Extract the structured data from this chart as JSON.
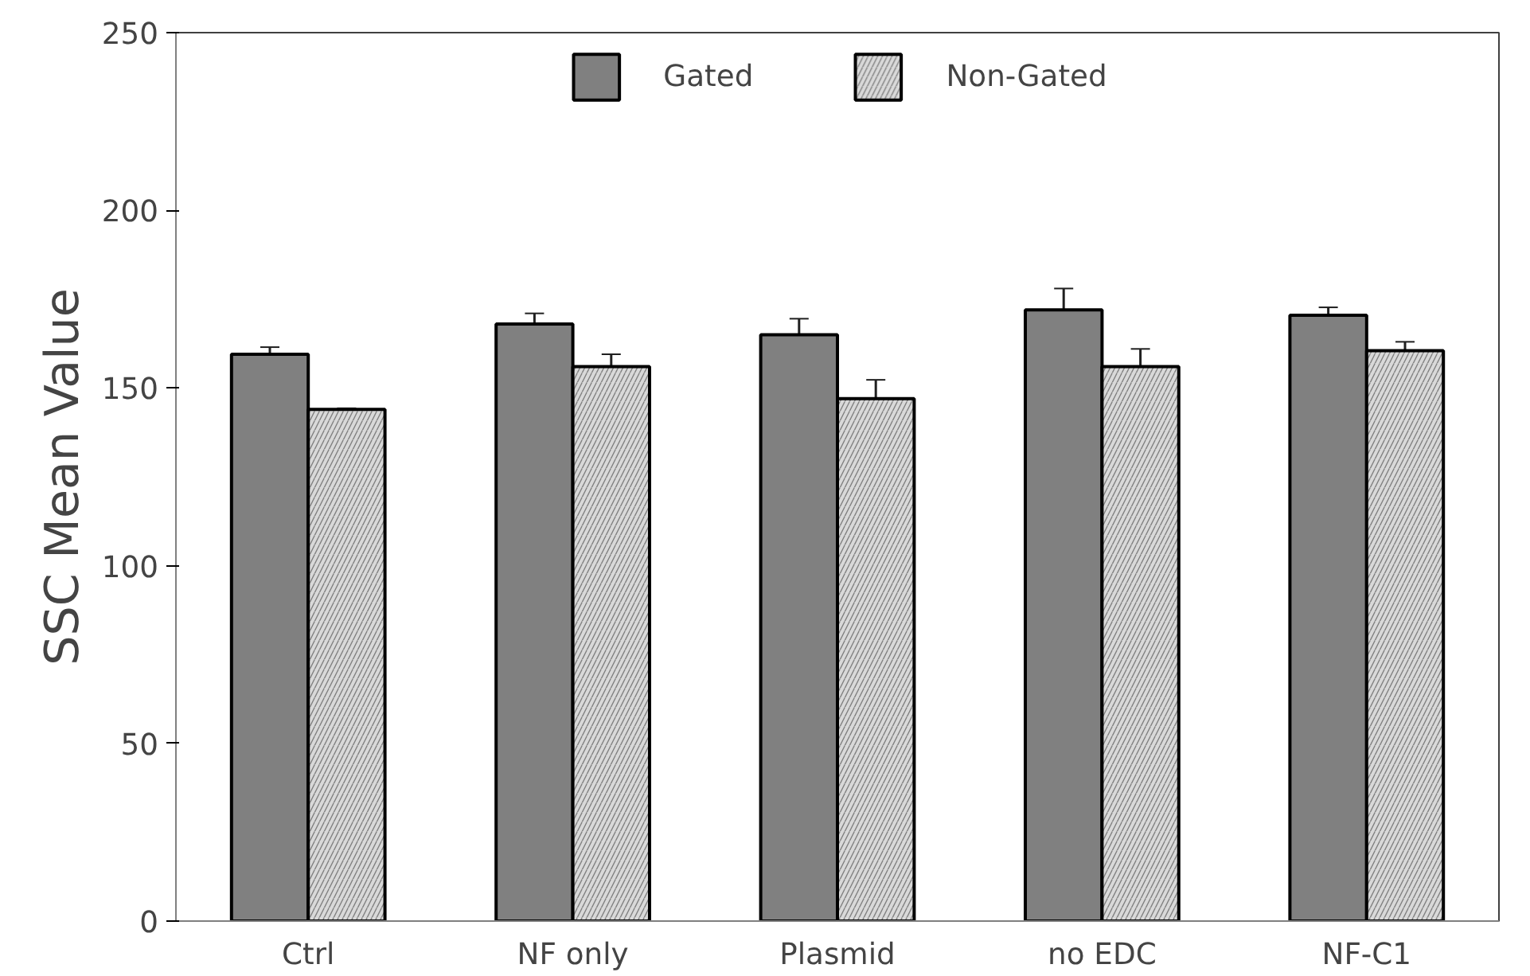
{
  "chart_data": {
    "type": "bar",
    "ylabel": "SSC Mean Value",
    "categories": [
      "Ctrl",
      "NF only",
      "Plasmid",
      "no EDC",
      "NF-C1"
    ],
    "series": [
      {
        "name": "Gated",
        "color": "#808080",
        "values": [
          159.5,
          168,
          165,
          172,
          170.5
        ],
        "errors": [
          2,
          3,
          4.5,
          6,
          2.2
        ]
      },
      {
        "name": "Non-Gated",
        "color": "#d9d9d9",
        "values": [
          144,
          156,
          147,
          156,
          160.5
        ],
        "errors": [
          0.3,
          3.5,
          5.3,
          5,
          2.5
        ]
      }
    ],
    "ylim": [
      0,
      250
    ],
    "yticks": [
      0,
      50,
      100,
      150,
      200,
      250
    ],
    "grid": false,
    "legend": "top"
  }
}
